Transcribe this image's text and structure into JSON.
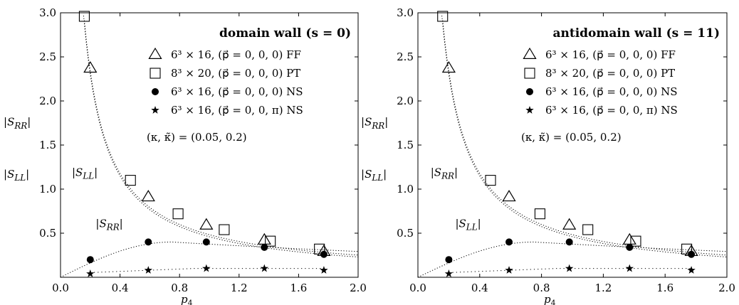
{
  "chart_data": [
    {
      "type": "scatter",
      "title": "domain wall (s = 0)",
      "xlabel": "p4",
      "xlim": [
        0.0,
        2.0
      ],
      "ylim": [
        0.0,
        3.0
      ],
      "xticks": [
        "0.0",
        "0.4",
        "0.8",
        "1.2",
        "1.6",
        "2.0"
      ],
      "yticks": [
        "0.5",
        "1.0",
        "1.5",
        "2.0",
        "2.5",
        "3.0"
      ],
      "ylabel_upper": "|S_RR|",
      "ylabel_lower": "|S_LL|",
      "legend": [
        {
          "symbol": "triangle",
          "label": "6³ × 16, (p⃗ = 0, 0, 0) FF"
        },
        {
          "symbol": "square",
          "label": "8³ × 20, (p⃗ = 0, 0, 0) PT"
        },
        {
          "symbol": "dot",
          "label": "6³ × 16, (p⃗ = 0, 0, 0) NS"
        },
        {
          "symbol": "star",
          "label": "6³ × 16, (p⃗ = 0, 0, π) NS"
        }
      ],
      "params": "(κ,  κ̃)   =   (0.05,  0.2)",
      "annotations": [
        {
          "text": "|S_LL|",
          "x": 0.22,
          "y": 1.15
        },
        {
          "text": "|S_RR|",
          "x": 0.38,
          "y": 0.57
        }
      ],
      "series": [
        {
          "symbol": "triangle",
          "x": [
            0.2,
            0.59,
            0.98,
            1.37,
            1.77
          ],
          "y": [
            2.37,
            0.91,
            0.59,
            0.42,
            0.29
          ]
        },
        {
          "symbol": "square",
          "x": [
            0.16,
            0.47,
            0.79,
            1.1,
            1.41,
            1.74
          ],
          "y": [
            2.96,
            1.1,
            0.72,
            0.54,
            0.41,
            0.32
          ]
        },
        {
          "symbol": "dot",
          "x": [
            0.2,
            0.59,
            0.98,
            1.37,
            1.77
          ],
          "y": [
            0.2,
            0.4,
            0.4,
            0.34,
            0.26
          ]
        },
        {
          "symbol": "star",
          "x": [
            0.2,
            0.59,
            0.98,
            1.37,
            1.77
          ],
          "y": [
            0.04,
            0.08,
            0.1,
            0.1,
            0.08
          ]
        }
      ]
    },
    {
      "type": "scatter",
      "title": "antidomain wall (s = 11)",
      "xlabel": "p4",
      "xlim": [
        0.0,
        2.0
      ],
      "ylim": [
        0.0,
        3.0
      ],
      "xticks": [
        "0.0",
        "0.4",
        "0.8",
        "1.2",
        "1.6",
        "2.0"
      ],
      "yticks": [
        "0.5",
        "1.0",
        "1.5",
        "2.0",
        "2.5",
        "3.0"
      ],
      "ylabel_upper": "|S_RR|",
      "ylabel_lower": "|S_LL|",
      "legend": [
        {
          "symbol": "triangle",
          "label": "6³ × 16, (p⃗ = 0, 0, 0) FF"
        },
        {
          "symbol": "square",
          "label": "8³ × 20, (p⃗ = 0, 0, 0) PT"
        },
        {
          "symbol": "dot",
          "label": "6³ × 16, (p⃗ = 0, 0, 0) NS"
        },
        {
          "symbol": "star",
          "label": "6³ × 16, (p⃗ = 0, 0, π) NS"
        }
      ],
      "params": "(κ,  κ̃)   =   (0.05,  0.2)",
      "annotations": [
        {
          "text": "|S_RR|",
          "x": 0.22,
          "y": 1.15
        },
        {
          "text": "|S_LL|",
          "x": 0.38,
          "y": 0.57
        }
      ],
      "series": [
        {
          "symbol": "triangle",
          "x": [
            0.2,
            0.59,
            0.98,
            1.37,
            1.77
          ],
          "y": [
            2.37,
            0.91,
            0.59,
            0.42,
            0.29
          ]
        },
        {
          "symbol": "square",
          "x": [
            0.16,
            0.47,
            0.79,
            1.1,
            1.41,
            1.74
          ],
          "y": [
            2.96,
            1.1,
            0.72,
            0.54,
            0.41,
            0.32
          ]
        },
        {
          "symbol": "dot",
          "x": [
            0.2,
            0.59,
            0.98,
            1.37,
            1.77
          ],
          "y": [
            0.2,
            0.4,
            0.4,
            0.34,
            0.26
          ]
        },
        {
          "symbol": "star",
          "x": [
            0.2,
            0.59,
            0.98,
            1.37,
            1.77
          ],
          "y": [
            0.04,
            0.08,
            0.1,
            0.1,
            0.08
          ]
        }
      ]
    }
  ]
}
